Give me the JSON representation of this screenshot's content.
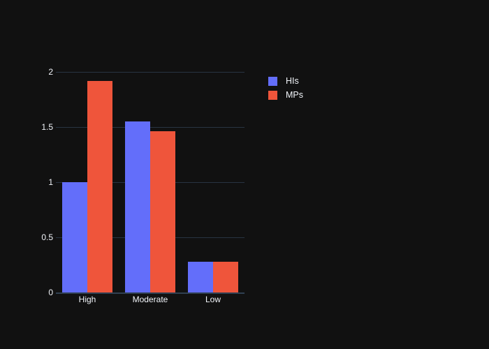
{
  "chart_data": {
    "type": "bar",
    "mode": "grouped",
    "title": "",
    "xlabel": "",
    "ylabel": "",
    "categories": [
      "High",
      "Moderate",
      "Low"
    ],
    "series": [
      {
        "name": "HIs",
        "color": "#636efa",
        "values": [
          1.0,
          1.55,
          0.28
        ]
      },
      {
        "name": "MPs",
        "color": "#ef553b",
        "values": [
          1.92,
          1.46,
          0.28
        ]
      }
    ],
    "ylim": [
      0,
      2
    ],
    "yticks": [
      0,
      0.5,
      1,
      1.5,
      2
    ],
    "ytick_labels": [
      "0",
      "0.5",
      "1",
      "1.5",
      "2"
    ],
    "grid": true,
    "legend_position": "top-right-outside",
    "theme": {
      "background": "#111111",
      "gridline_color": "#283442",
      "zeroline_color": "#304052",
      "text_color": "#f2f5fa"
    }
  }
}
